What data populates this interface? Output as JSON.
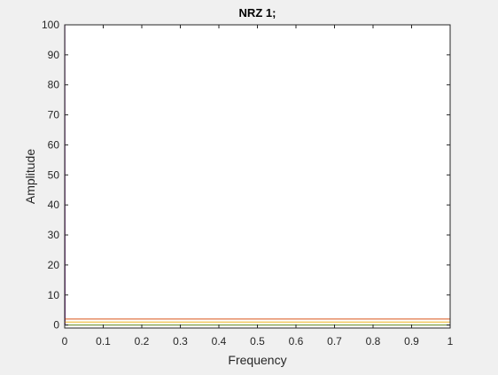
{
  "chart_data": {
    "type": "line",
    "title": "NRZ 1;",
    "xlabel": "Frequency",
    "ylabel": "Amplitude",
    "xlim": [
      0,
      1
    ],
    "ylim": [
      -1,
      100
    ],
    "xticks": [
      0,
      0.1,
      0.2,
      0.3,
      0.4,
      0.5,
      0.6,
      0.7,
      0.8,
      0.9,
      1
    ],
    "xtick_labels": [
      "0",
      "0.1",
      "0.2",
      "0.3",
      "0.4",
      "0.5",
      "0.6",
      "0.7",
      "0.8",
      "0.9",
      "1"
    ],
    "yticks": [
      0,
      10,
      20,
      30,
      40,
      50,
      60,
      70,
      80,
      90,
      100
    ],
    "ytick_labels": [
      "0",
      "10",
      "20",
      "30",
      "40",
      "50",
      "60",
      "70",
      "80",
      "90",
      "100"
    ],
    "grid": false,
    "series": [
      {
        "color": "#7e2f8e",
        "x": [
          0,
          0.0005,
          0.0012,
          1
        ],
        "y": [
          100,
          100,
          0,
          0
        ]
      },
      {
        "color": "#d95319",
        "x": [
          0,
          1
        ],
        "y": [
          2,
          2
        ]
      },
      {
        "color": "#edb120",
        "x": [
          0,
          1
        ],
        "y": [
          1,
          1
        ]
      },
      {
        "color": "#77ac30",
        "x": [
          0,
          1
        ],
        "y": [
          0,
          0
        ]
      }
    ]
  }
}
